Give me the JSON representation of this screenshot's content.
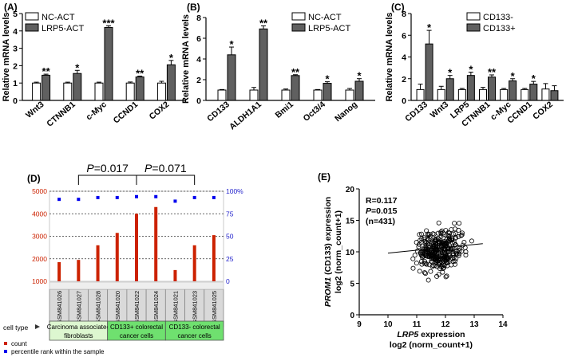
{
  "chart_data": [
    {
      "panel": "(A)",
      "type": "bar",
      "ylabel": "Relative mRNA levels",
      "ylim": [
        0,
        5
      ],
      "yticks": [
        "0",
        "1",
        "2",
        "3",
        "4",
        "5"
      ],
      "categories": [
        "Wnt3",
        "CTNNB1",
        "c-Myc",
        "CCND1",
        "COX2"
      ],
      "series": [
        {
          "name": "NC-ACT",
          "values": [
            1.0,
            1.0,
            1.0,
            1.0,
            1.0
          ],
          "errors": [
            0.05,
            0.05,
            0.05,
            0.06,
            0.1
          ],
          "color": "#ffffff"
        },
        {
          "name": "LRP5-ACT",
          "values": [
            1.45,
            1.55,
            4.2,
            1.35,
            2.05
          ],
          "errors": [
            0.06,
            0.18,
            0.1,
            0.05,
            0.25
          ],
          "color": "#606060"
        }
      ],
      "significance": [
        "**",
        "*",
        "***",
        "**",
        "*"
      ],
      "legend": [
        "NC-ACT",
        "LRP5-ACT"
      ],
      "legend_position": "top-left"
    },
    {
      "panel": "(B)",
      "type": "bar",
      "ylabel": "Relative mRNA levels",
      "ylim": [
        0,
        8
      ],
      "yticks": [
        "0",
        "2",
        "4",
        "6",
        "8"
      ],
      "categories": [
        "CD133",
        "ALDH1A1",
        "Bmi1",
        "Oct3/4",
        "Nanog"
      ],
      "series": [
        {
          "name": "NC-ACT",
          "values": [
            1.0,
            1.0,
            1.0,
            1.0,
            1.0
          ],
          "errors": [
            0.05,
            0.25,
            0.1,
            0.05,
            0.15
          ],
          "color": "#ffffff"
        },
        {
          "name": "LRP5-ACT",
          "values": [
            4.4,
            6.9,
            2.4,
            1.65,
            1.85
          ],
          "errors": [
            0.75,
            0.3,
            0.08,
            0.15,
            0.25
          ],
          "color": "#606060"
        }
      ],
      "significance": [
        "*",
        "**",
        "**",
        "*",
        "*"
      ],
      "legend": [
        "NC-ACT",
        "LRP5-ACT"
      ],
      "legend_position": "top-right"
    },
    {
      "panel": "(C)",
      "type": "bar",
      "ylabel": "Relative mRNA levels",
      "ylim": [
        0,
        8
      ],
      "yticks": [
        "0",
        "2",
        "4",
        "6",
        "8"
      ],
      "categories": [
        "CD133",
        "Wnt3",
        "LRP5",
        "CTNNB1",
        "c-Myc",
        "CCND1",
        "COX2"
      ],
      "series": [
        {
          "name": "CD133-",
          "values": [
            1.0,
            1.0,
            1.0,
            1.0,
            1.0,
            1.0,
            1.05
          ],
          "errors": [
            0.5,
            0.3,
            0.1,
            0.2,
            0.1,
            0.1,
            0.5
          ],
          "color": "#ffffff"
        },
        {
          "name": "CD133+",
          "values": [
            5.2,
            2.0,
            2.3,
            2.15,
            1.8,
            1.5,
            0.9
          ],
          "errors": [
            1.25,
            0.3,
            0.3,
            0.2,
            0.2,
            0.25,
            0.45
          ],
          "color": "#606060"
        }
      ],
      "significance": [
        "*",
        "*",
        "*",
        "**",
        "*",
        "*",
        ""
      ],
      "legend": [
        "CD133-",
        "CD133+"
      ],
      "legend_position": "top-right"
    },
    {
      "panel": "(D)",
      "type": "bar",
      "title": "",
      "ylim_left": [
        1000,
        5000
      ],
      "yticks_left": [
        "1000",
        "2000",
        "3000",
        "4000",
        "5000"
      ],
      "ylim_right": [
        0,
        100
      ],
      "yticks_right": [
        "0",
        "25",
        "50",
        "75",
        "100%"
      ],
      "samples": [
        "GSM841026",
        "GSM841027",
        "GSM841028",
        "GSM841020",
        "GSM841022",
        "GSM841024",
        "GSM841021",
        "GSM841023",
        "GSM841025"
      ],
      "count": [
        1850,
        1950,
        2600,
        3150,
        4000,
        4300,
        1500,
        2600,
        3050
      ],
      "percentile": [
        91,
        91,
        93,
        93,
        94,
        94,
        89,
        93,
        93
      ],
      "groups": [
        {
          "label_line1": "Carcinoma associated",
          "label_line2": "fibroblasts",
          "color": "#ddf7d0"
        },
        {
          "label_line1": "CD133+ colorectal",
          "label_line2": "cancer cells",
          "color": "#6fe06f"
        },
        {
          "label_line1": "CD133- colorectal",
          "label_line2": "cancer cells",
          "color": "#6fe06f"
        }
      ],
      "brackets": [
        {
          "p_label": "P",
          "p_value": "=0.017"
        },
        {
          "p_label": "P",
          "p_value": "=0.071"
        }
      ],
      "cell_type_label": "cell type",
      "legend": [
        {
          "label": "count",
          "color": "#cc2200"
        },
        {
          "label": "percentile rank within the sample",
          "color": "#0000ee"
        }
      ]
    },
    {
      "panel": "(E)",
      "type": "scatter",
      "xlabel_italic": "LRP5",
      "xlabel_rest": " expression",
      "xlabel_line2": "log2 (norm_count+1)",
      "ylabel_italic": "PROM1",
      "ylabel_rest": " (CD133) expression",
      "ylabel_line2": "log2 (norm_count+1)",
      "xlim": [
        9,
        14
      ],
      "ylim": [
        0,
        20
      ],
      "xticks": [
        "9",
        "10",
        "11",
        "12",
        "13",
        "14"
      ],
      "yticks": [
        "0",
        "5",
        "10",
        "15",
        "20"
      ],
      "annotation": {
        "r": "R=0.117",
        "p_label": "P",
        "p_value": "=0.015",
        "n": "(n=431)"
      },
      "fit_line": {
        "x": [
          10.0,
          13.3
        ],
        "y": [
          9.8,
          11.3
        ]
      }
    }
  ]
}
